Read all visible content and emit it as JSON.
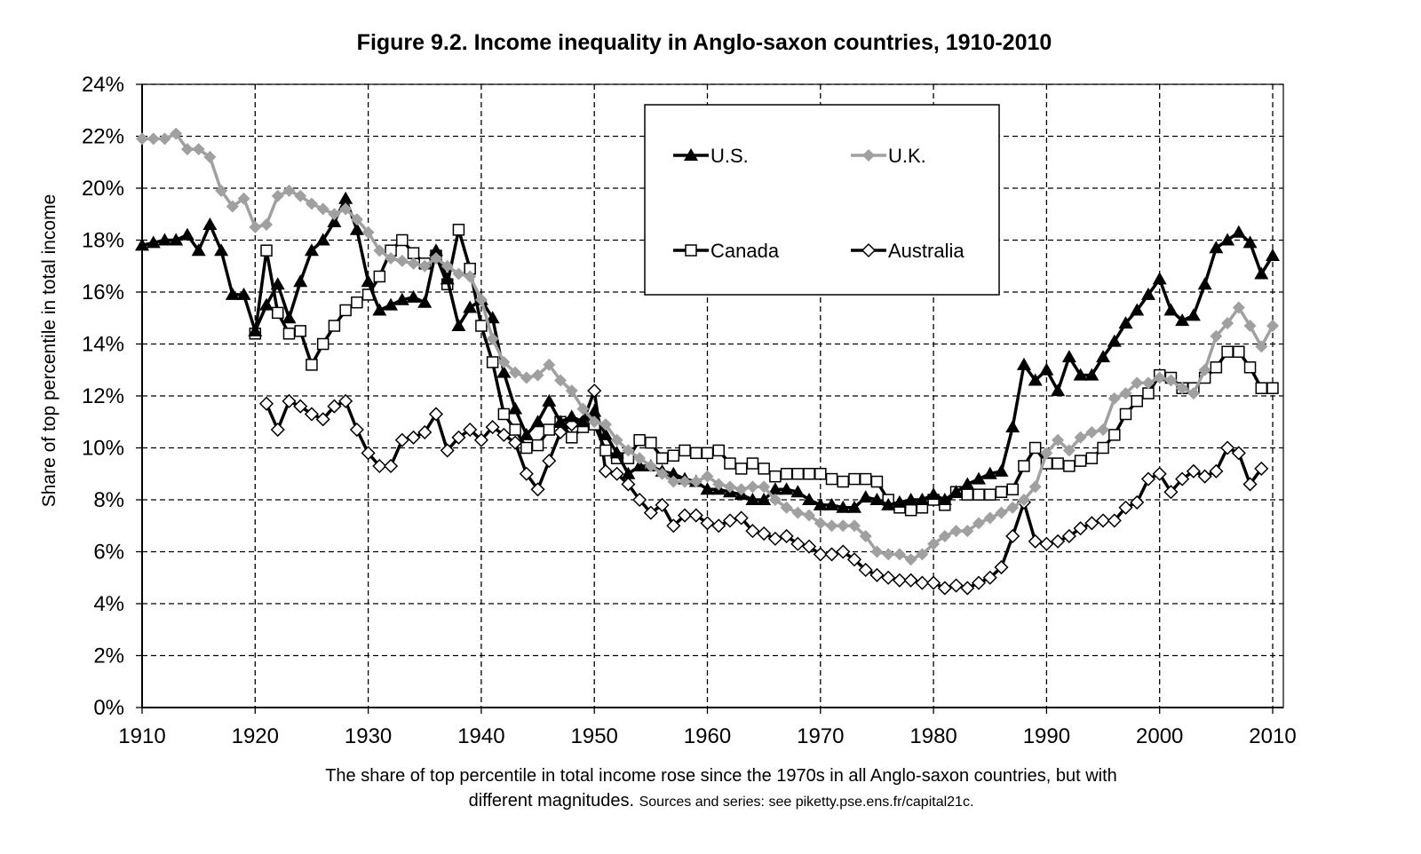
{
  "chart_data": {
    "type": "line",
    "title": "Figure 9.2. Income inequality in Anglo-saxon countries, 1910-2010",
    "xlabel": "",
    "ylabel": "Share of top percentile in total income",
    "xlim": [
      1910,
      2010
    ],
    "ylim": [
      0,
      24
    ],
    "x_ticks": [
      "1910",
      "1920",
      "1930",
      "1940",
      "1950",
      "1960",
      "1970",
      "1980",
      "1990",
      "2000",
      "2010"
    ],
    "y_ticks": [
      "0%",
      "2%",
      "4%",
      "6%",
      "8%",
      "10%",
      "12%",
      "14%",
      "16%",
      "18%",
      "20%",
      "22%",
      "24%"
    ],
    "grid": true,
    "legend_position": "top-center",
    "caption_main": "The share of top percentile in total income rose since the 1970s in all Anglo-saxon countries, but with",
    "caption_line2": "different magnitudes.",
    "caption_source": "Sources and series: see piketty.pse.ens.fr/capital21c.",
    "series": [
      {
        "name": "U.S.",
        "marker": "triangle",
        "color": "#000000",
        "start": 1910,
        "values": [
          17.8,
          17.9,
          18.0,
          18.0,
          18.2,
          17.6,
          18.6,
          17.6,
          15.9,
          15.9,
          14.5,
          15.5,
          16.3,
          15.0,
          16.4,
          17.6,
          18.0,
          18.7,
          19.6,
          18.4,
          16.4,
          15.3,
          15.5,
          15.7,
          15.8,
          15.6,
          17.6,
          16.5,
          14.7,
          15.4,
          15.7,
          15.0,
          12.9,
          11.5,
          10.5,
          11.0,
          11.8,
          11.0,
          11.2,
          11.0,
          11.4,
          10.5,
          9.8,
          9.0,
          9.3,
          9.3,
          9.1,
          9.0,
          8.8,
          8.7,
          8.4,
          8.4,
          8.3,
          8.2,
          8.0,
          8.0,
          8.4,
          8.4,
          8.3,
          8.0,
          7.8,
          7.8,
          7.7,
          7.7,
          8.1,
          8.0,
          7.8,
          7.9,
          8.0,
          8.0,
          8.2,
          8.0,
          8.3,
          8.6,
          8.8,
          9.0,
          9.1,
          10.8,
          13.2,
          12.6,
          13.0,
          12.2,
          13.5,
          12.8,
          12.8,
          13.5,
          14.1,
          14.8,
          15.3,
          15.9,
          16.5,
          15.3,
          14.9,
          15.1,
          16.3,
          17.7,
          18.0,
          18.3,
          17.9,
          16.7,
          17.4
        ]
      },
      {
        "name": "U.K.",
        "marker": "diamond-filled",
        "color": "#a0a0a0",
        "start": 1910,
        "values": [
          21.9,
          21.9,
          21.9,
          22.1,
          21.5,
          21.5,
          21.2,
          19.9,
          19.3,
          19.6,
          18.5,
          18.6,
          19.7,
          19.9,
          19.7,
          19.4,
          19.2,
          19.0,
          19.2,
          18.8,
          18.3,
          17.6,
          17.3,
          17.2,
          17.1,
          17.0,
          17.3,
          17.0,
          16.7,
          16.6,
          15.7,
          14.2,
          13.3,
          12.9,
          12.7,
          12.8,
          13.2,
          12.6,
          12.2,
          11.5,
          11.0,
          10.9,
          10.3,
          9.9,
          9.6,
          9.3,
          9.0,
          8.7,
          8.7,
          8.7,
          8.9,
          8.6,
          8.5,
          8.4,
          8.5,
          8.5,
          8.0,
          7.7,
          7.5,
          7.4,
          7.1,
          7.0,
          7.0,
          7.0,
          6.6,
          6.0,
          5.9,
          5.9,
          5.7,
          5.9,
          6.3,
          6.6,
          6.8,
          6.8,
          7.1,
          7.3,
          7.5,
          7.7,
          8.0,
          8.5,
          9.8,
          10.3,
          9.9,
          10.4,
          10.6,
          10.7,
          11.9,
          12.1,
          12.5,
          12.5,
          12.7,
          12.6,
          12.3,
          12.1,
          13.0,
          14.3,
          14.8,
          15.4,
          14.7,
          13.9,
          14.7
        ]
      },
      {
        "name": "Canada",
        "marker": "square-open",
        "color": "#000000",
        "start": 1920,
        "values": [
          14.4,
          17.6,
          15.2,
          14.4,
          14.5,
          13.2,
          14.0,
          14.7,
          15.3,
          15.6,
          15.9,
          16.6,
          17.6,
          18.0,
          17.5,
          17.1,
          17.4,
          16.3,
          18.4,
          16.9,
          14.7,
          13.3,
          11.3,
          10.7,
          10.0,
          10.1,
          10.7,
          11.0,
          10.4,
          10.8,
          10.9,
          9.9,
          9.6,
          9.6,
          10.3,
          10.2,
          9.6,
          9.7,
          9.9,
          9.8,
          9.8,
          9.9,
          9.4,
          9.2,
          9.4,
          9.2,
          8.9,
          9.0,
          9.0,
          9.0,
          9.0,
          8.8,
          8.7,
          8.8,
          8.8,
          8.7,
          8.0,
          7.7,
          7.6,
          7.7,
          8.0,
          7.8,
          8.3,
          8.2,
          8.2,
          8.2,
          8.3,
          8.4,
          9.3,
          10.0,
          9.4,
          9.4,
          9.3,
          9.5,
          9.6,
          10.0,
          10.5,
          11.3,
          11.8,
          12.1,
          12.8,
          12.7,
          12.3,
          12.3,
          12.7,
          13.1,
          13.7,
          13.7,
          13.1,
          12.3,
          12.3
        ]
      },
      {
        "name": "Australia",
        "marker": "diamond-open",
        "color": "#000000",
        "start": 1921,
        "values": [
          11.7,
          10.7,
          11.8,
          11.6,
          11.3,
          11.1,
          11.6,
          11.8,
          10.7,
          9.8,
          9.3,
          9.3,
          10.3,
          10.4,
          10.6,
          11.3,
          9.9,
          10.4,
          10.7,
          10.3,
          10.8,
          10.5,
          10.2,
          9.0,
          8.4,
          9.5,
          10.6,
          10.9,
          11.0,
          12.2,
          9.1,
          9.0,
          8.6,
          8.0,
          7.5,
          7.8,
          7.0,
          7.4,
          7.4,
          7.1,
          7.0,
          7.2,
          7.3,
          6.8,
          6.7,
          6.5,
          6.6,
          6.3,
          6.2,
          5.9,
          5.9,
          6.0,
          5.7,
          5.3,
          5.1,
          5.0,
          4.9,
          4.9,
          4.8,
          4.8,
          4.6,
          4.7,
          4.6,
          4.8,
          5.0,
          5.4,
          6.6,
          7.9,
          6.4,
          6.3,
          6.4,
          6.6,
          6.9,
          7.1,
          7.2,
          7.2,
          7.7,
          7.9,
          8.8,
          9.0,
          8.3,
          8.8,
          9.1,
          8.9,
          9.1,
          10.0,
          9.8,
          8.6,
          9.2
        ]
      }
    ]
  }
}
